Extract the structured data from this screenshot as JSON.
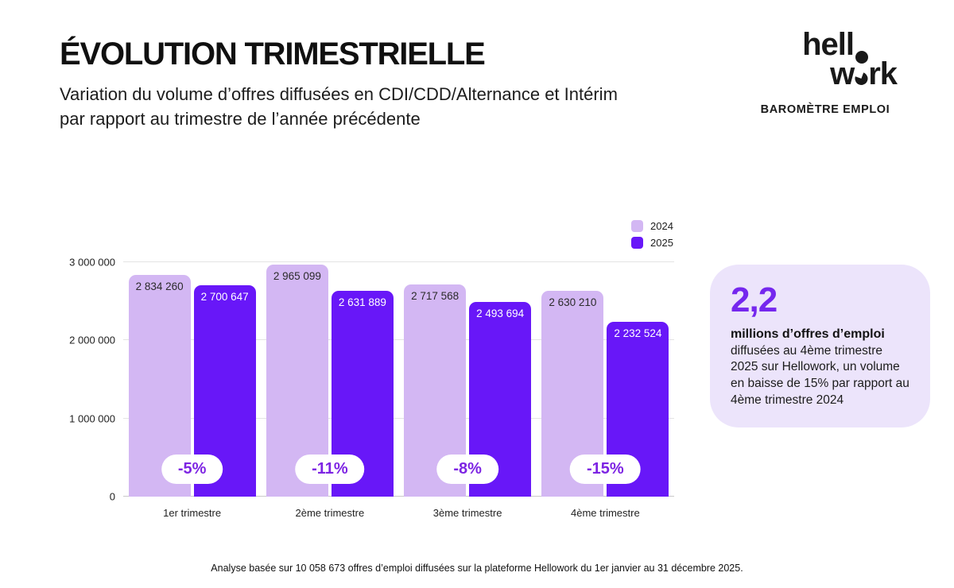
{
  "header": {
    "title": "ÉVOLUTION TRIMESTRIELLE",
    "subtitle_line1": "Variation du volume d’offres diffusées en CDI/CDD/Alternance et Intérim",
    "subtitle_line2": "par rapport au trimestre de l’année précédente"
  },
  "logo": {
    "part_hell": "hell",
    "part_w": "w",
    "part_rk": "rk",
    "tagline": "BAROMÈTRE EMPLOI"
  },
  "chart_data": {
    "type": "bar",
    "categories": [
      "1er trimestre",
      "2ème trimestre",
      "3ème trimestre",
      "4ème trimestre"
    ],
    "series": [
      {
        "name": "2024",
        "color": "#d3b7f3",
        "values": [
          2834260,
          2965099,
          2717568,
          2630210
        ],
        "labels": [
          "2 834 260",
          "2 965 099",
          "2 717 568",
          "2 630 210"
        ]
      },
      {
        "name": "2025",
        "color": "#6817f8",
        "values": [
          2700647,
          2631889,
          2493694,
          2232524
        ],
        "labels": [
          "2 700 647",
          "2 631 889",
          "2 493 694",
          "2 232 524"
        ]
      }
    ],
    "deltas": [
      "-5%",
      "-11%",
      "-8%",
      "-15%"
    ],
    "y_ticks": [
      {
        "value": 0,
        "label": "0"
      },
      {
        "value": 1000000,
        "label": "1 000 000"
      },
      {
        "value": 2000000,
        "label": "2 000 000"
      },
      {
        "value": 3000000,
        "label": "3 000 000"
      }
    ],
    "ylim": [
      0,
      3000000
    ],
    "grid": true,
    "legend_position": "top-right",
    "title": "ÉVOLUTION TRIMESTRIELLE",
    "xlabel": "",
    "ylabel": ""
  },
  "callout": {
    "headline": "2,2",
    "bold_text": "millions d’offres d’emploi",
    "body_text": "diffusées au 4ème trimestre 2025 sur Hellowork, un volume en baisse de 15% par rapport au 4ème trimestre 2024"
  },
  "footer": {
    "note": "Analyse basée sur 10 058 673 offres d’emploi diffusées sur la plateforme Hellowork du 1er janvier au 31 décembre 2025."
  },
  "colors": {
    "accent_light": "#d3b7f3",
    "accent_dark": "#6817f8",
    "badge_text": "#7d24e3",
    "headline_purple": "#7527ee",
    "callout_bg": "#ece4fb"
  }
}
